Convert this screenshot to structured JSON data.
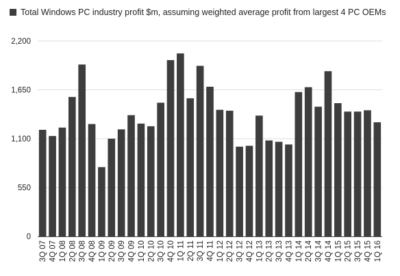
{
  "chart_data": {
    "type": "bar",
    "title": "",
    "xlabel": "",
    "ylabel": "",
    "legend": {
      "position": "top-left",
      "entries": [
        "Total Windows PC industry profit $m, assuming weighted average profit from largest 4 PC OEMs"
      ]
    },
    "categories": [
      "3Q 07",
      "4Q 07",
      "1Q 08",
      "2Q 08",
      "3Q 08",
      "4Q 08",
      "1Q 09",
      "2Q 09",
      "3Q 09",
      "4Q 09",
      "1Q 10",
      "2Q 10",
      "3Q 10",
      "4Q 10",
      "1Q 11",
      "2Q 11",
      "3Q 11",
      "4Q 11",
      "1Q 12",
      "2Q 12",
      "3Q 12",
      "4Q 12",
      "1Q 13",
      "2Q 13",
      "3Q 13",
      "4Q 13",
      "1Q 14",
      "2Q 14",
      "3Q 14",
      "4Q 14",
      "1Q 15",
      "2Q 15",
      "3Q 15",
      "4Q 15",
      "1Q 16"
    ],
    "series": [
      {
        "name": "Total Windows PC industry profit $m, assuming weighted average profit from largest 4 PC OEMs",
        "values": [
          1200,
          1130,
          1225,
          1570,
          1935,
          1265,
          780,
          1100,
          1205,
          1365,
          1270,
          1240,
          1505,
          1985,
          2060,
          1555,
          1920,
          1685,
          1425,
          1415,
          1010,
          1020,
          1360,
          1080,
          1065,
          1035,
          1625,
          1680,
          1460,
          1860,
          1500,
          1405,
          1405,
          1420,
          1285
        ]
      }
    ],
    "yticks": [
      "0",
      "550",
      "1,100",
      "1,650",
      "2,200"
    ],
    "ylim": [
      0,
      2200
    ],
    "grid": true,
    "colors": {
      "bar": "#3d3d3d",
      "grid": "#dddddd",
      "axis": "#444444"
    }
  }
}
